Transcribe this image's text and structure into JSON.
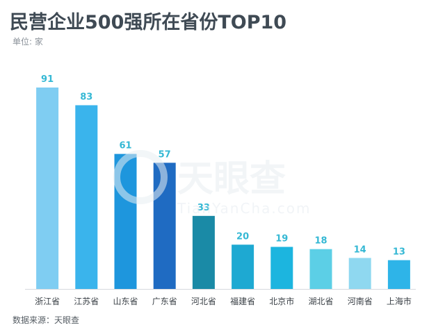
{
  "title": "民营企业500强所在省份TOP10",
  "unit_label": "单位: 家",
  "source_label": "数据来源：天眼查",
  "watermark": {
    "brand": "天眼查",
    "url": "TianYanCha.com"
  },
  "chart_data": {
    "type": "bar",
    "categories": [
      "浙江省",
      "江苏省",
      "山东省",
      "广东省",
      "河北省",
      "福建省",
      "北京市",
      "湖北省",
      "河南省",
      "上海市"
    ],
    "values": [
      91,
      83,
      61,
      57,
      33,
      20,
      19,
      18,
      14,
      13
    ],
    "colors": [
      "#7fcdf2",
      "#3ab4ec",
      "#1e96dd",
      "#1f6bc2",
      "#1a8aa6",
      "#1ea9d2",
      "#1cb5df",
      "#5ccfe6",
      "#8fd8f0",
      "#2eb4e8"
    ],
    "label_color": "#35b8d4",
    "ylim": [
      0,
      100
    ],
    "grid": false
  }
}
